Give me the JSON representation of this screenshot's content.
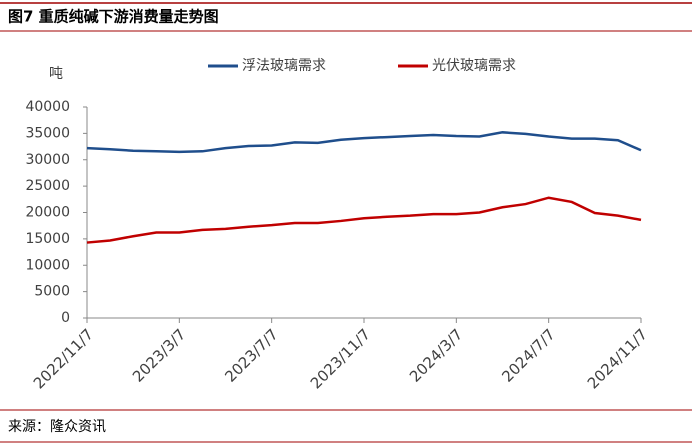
{
  "chart_data": {
    "type": "line",
    "title": "图7  重质纯碱下游消费量走势图",
    "y_label": "吨",
    "source": "来源：隆众资讯",
    "categories": [
      "2022/11/7",
      null,
      null,
      null,
      "2023/3/7",
      null,
      null,
      null,
      "2023/7/7",
      null,
      null,
      null,
      "2023/11/7",
      null,
      null,
      null,
      "2024/3/7",
      null,
      null,
      null,
      "2024/7/7",
      null,
      null,
      null,
      "2024/11/7"
    ],
    "series": [
      {
        "name": "浮法玻璃需求",
        "color": "#1f4e8c",
        "values": [
          32200,
          32000,
          31700,
          31600,
          31500,
          31600,
          32200,
          32600,
          32700,
          33300,
          33200,
          33800,
          34100,
          34300,
          34500,
          34700,
          34500,
          34400,
          35200,
          34900,
          34400,
          34000,
          34000,
          33700,
          31800
        ]
      },
      {
        "name": "光伏玻璃需求",
        "color": "#c00000",
        "values": [
          14300,
          14700,
          15500,
          16200,
          16200,
          16700,
          16900,
          17300,
          17600,
          18000,
          18000,
          18400,
          18900,
          19200,
          19400,
          19700,
          19700,
          20000,
          21000,
          21600,
          22800,
          22000,
          19900,
          19400,
          18600
        ]
      }
    ],
    "ylim": [
      0,
      40000
    ],
    "yticks": [
      0,
      5000,
      10000,
      15000,
      20000,
      25000,
      30000,
      35000,
      40000
    ],
    "grid": false,
    "legend": "top"
  }
}
